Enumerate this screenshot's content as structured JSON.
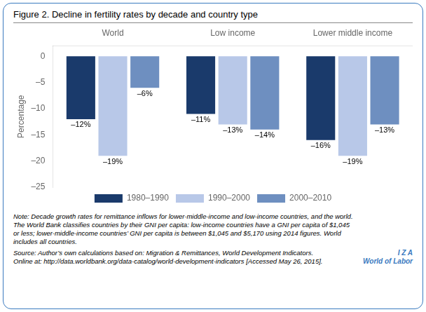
{
  "chart_data": {
    "type": "bar",
    "title": "Figure 2. Decline in fertility rates by decade and country type",
    "categories": [
      "World",
      "Low income",
      "Lower middle income"
    ],
    "series": [
      {
        "name": "1980–1990",
        "color": "#1a3a6b",
        "values": [
          -12,
          -11,
          -16
        ],
        "value_labels": [
          "–12%",
          "–11%",
          "–16%"
        ]
      },
      {
        "name": "1990–2000",
        "color": "#b8c8e8",
        "values": [
          -19,
          -13,
          -19
        ],
        "value_labels": [
          "–19%",
          "–13%",
          "–19%"
        ]
      },
      {
        "name": "2000–2010",
        "color": "#6e8fc0",
        "values": [
          -6,
          -14,
          -13
        ],
        "value_labels": [
          "–6%",
          "–14%",
          "–13%"
        ]
      }
    ],
    "ylabel": "Percentage",
    "ylim": [
      -25,
      2
    ],
    "yticks": [
      0,
      {
        "value": -5,
        "label": "–5"
      },
      {
        "value": -10,
        "label": "–10"
      },
      {
        "value": -15,
        "label": "–15"
      },
      {
        "value": -20,
        "label": "–20"
      },
      {
        "value": -25,
        "label": "–25"
      }
    ],
    "grid": false,
    "legend": "bottom",
    "data_labels": true,
    "notes": [
      "Note: Decade growth rates for remittance inflows for lower-middle-income and low-income countries, and the world.",
      "The World Bank classifies countries by their GNI per capita: low-income countries have a GNI per capita of $1,045",
      "or less; lower-middle-income countries’ GNI per capita is between $1,045 and $5,170 using 2014 figures. World",
      "includes all countries."
    ],
    "source": [
      "Source: Author’s own calculations based on: Migration & Remittances, World Development Indicators.",
      "Online at: http://data.worldbank.org/data-catalog/world-development-indicators [Accessed May 26, 2015]."
    ],
    "logo": [
      "I  Z  A",
      "World of Labor"
    ]
  }
}
